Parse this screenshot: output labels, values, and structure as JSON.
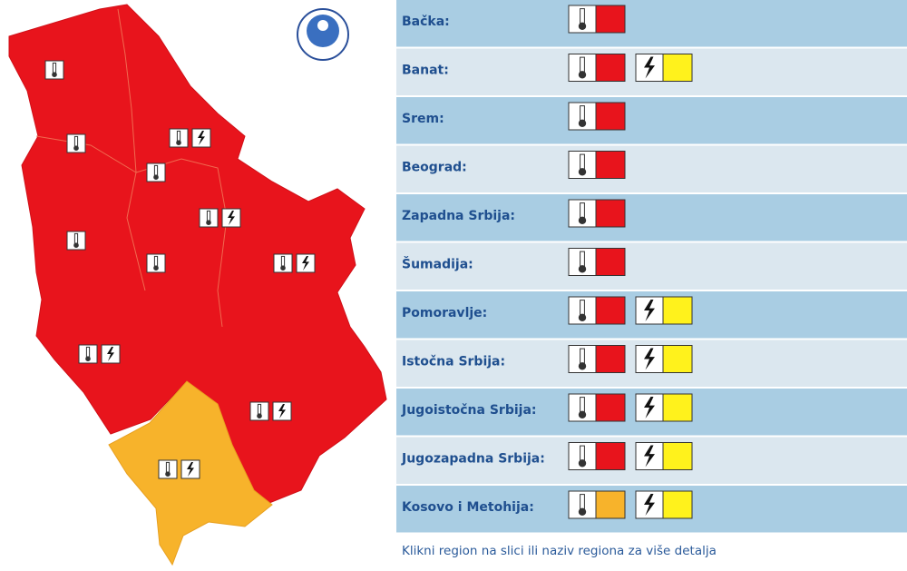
{
  "regions": [
    {
      "name": "Bačka:",
      "warnings": [
        {
          "kind": "temperature",
          "color": "#e8141c"
        }
      ]
    },
    {
      "name": "Banat:",
      "warnings": [
        {
          "kind": "temperature",
          "color": "#e8141c"
        },
        {
          "kind": "thunderstorm",
          "color": "#fff21c"
        }
      ]
    },
    {
      "name": "Srem:",
      "warnings": [
        {
          "kind": "temperature",
          "color": "#e8141c"
        }
      ]
    },
    {
      "name": "Beograd:",
      "warnings": [
        {
          "kind": "temperature",
          "color": "#e8141c"
        }
      ]
    },
    {
      "name": "Zapadna Srbija:",
      "warnings": [
        {
          "kind": "temperature",
          "color": "#e8141c"
        }
      ]
    },
    {
      "name": "Šumadija:",
      "warnings": [
        {
          "kind": "temperature",
          "color": "#e8141c"
        }
      ]
    },
    {
      "name": "Pomoravlje:",
      "warnings": [
        {
          "kind": "temperature",
          "color": "#e8141c"
        },
        {
          "kind": "thunderstorm",
          "color": "#fff21c"
        }
      ]
    },
    {
      "name": "Istočna Srbija:",
      "warnings": [
        {
          "kind": "temperature",
          "color": "#e8141c"
        },
        {
          "kind": "thunderstorm",
          "color": "#fff21c"
        }
      ]
    },
    {
      "name": "Jugoistočna Srbija:",
      "warnings": [
        {
          "kind": "temperature",
          "color": "#e8141c"
        },
        {
          "kind": "thunderstorm",
          "color": "#fff21c"
        }
      ]
    },
    {
      "name": "Jugozapadna Srbija:",
      "warnings": [
        {
          "kind": "temperature",
          "color": "#e8141c"
        },
        {
          "kind": "thunderstorm",
          "color": "#fff21c"
        }
      ]
    },
    {
      "name": "Kosovo i Metohija:",
      "warnings": [
        {
          "kind": "temperature",
          "color": "#f7b32b"
        },
        {
          "kind": "thunderstorm",
          "color": "#fff21c"
        }
      ]
    }
  ],
  "footer": "Klikni region na slici ili naziv regiona za više detalja"
}
